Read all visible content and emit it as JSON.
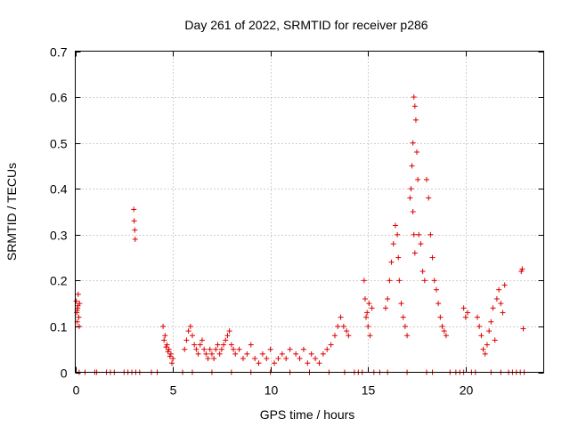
{
  "chart_data": {
    "type": "scatter",
    "title": "Day 261 of 2022, SRMTID for receiver p286",
    "xlabel": "GPS time / hours",
    "ylabel": "SRMTID / TECUs",
    "xlim": [
      0,
      24
    ],
    "ylim": [
      0,
      0.7
    ],
    "xticks": [
      "0",
      "5",
      "10",
      "15",
      "20"
    ],
    "xtick_values": [
      0,
      5,
      10,
      15,
      20
    ],
    "yticks": [
      "0",
      "0.1",
      "0.2",
      "0.3",
      "0.4",
      "0.5",
      "0.6",
      "0.7"
    ],
    "ytick_values": [
      0,
      0.1,
      0.2,
      0.3,
      0.4,
      0.5,
      0.6,
      0.7
    ],
    "grid": true,
    "marker": "+",
    "color": "#dd0000",
    "series": [
      {
        "name": "SRMTID",
        "x": [
          0.05,
          0.08,
          0.1,
          0.12,
          0.15,
          0.18,
          0.2,
          0.22,
          0.1,
          0.14,
          3.0,
          3.02,
          3.05,
          3.07,
          4.5,
          4.6,
          4.7,
          4.8,
          4.9,
          5.0,
          4.55,
          4.65,
          4.75,
          4.85,
          4.95,
          5.6,
          5.7,
          5.8,
          5.9,
          6.0,
          6.1,
          6.2,
          6.3,
          6.4,
          6.5,
          6.6,
          6.7,
          6.8,
          6.9,
          7.0,
          7.1,
          7.2,
          7.3,
          7.4,
          7.5,
          7.6,
          7.7,
          7.8,
          7.9,
          8.0,
          8.1,
          8.2,
          8.4,
          8.6,
          8.8,
          9.0,
          9.2,
          9.4,
          9.6,
          9.8,
          10.0,
          10.2,
          10.4,
          10.6,
          10.8,
          11.0,
          11.3,
          11.5,
          11.7,
          11.9,
          12.1,
          12.3,
          12.5,
          12.7,
          12.9,
          13.1,
          13.3,
          13.45,
          13.6,
          13.75,
          13.9,
          14.0,
          14.8,
          14.85,
          14.9,
          15.0,
          15.1,
          15.2,
          15.05,
          14.95,
          15.9,
          16.0,
          16.1,
          16.2,
          16.3,
          16.4,
          16.5,
          16.55,
          16.6,
          16.7,
          16.8,
          16.9,
          17.0,
          17.15,
          17.2,
          17.25,
          17.3,
          17.35,
          17.4,
          17.45,
          17.5,
          17.55,
          17.3,
          17.35,
          17.4,
          17.6,
          17.7,
          17.8,
          17.9,
          18.0,
          18.1,
          18.2,
          18.3,
          18.4,
          18.5,
          18.6,
          18.7,
          18.8,
          18.9,
          19.0,
          19.9,
          20.0,
          20.1,
          20.6,
          20.7,
          20.8,
          20.9,
          21.0,
          21.1,
          21.2,
          21.3,
          21.4,
          21.5,
          21.6,
          21.7,
          21.8,
          21.9,
          22.0,
          22.85,
          22.9,
          22.95,
          0.2,
          0.5,
          1.0,
          1.1,
          1.6,
          1.8,
          2.0,
          2.5,
          2.7,
          2.9,
          3.1,
          3.3,
          3.9,
          4.2,
          5.5,
          6.0,
          7.0,
          8.0,
          9.0,
          10.0,
          11.0,
          12.0,
          13.0,
          13.8,
          14.3,
          14.5,
          14.7,
          15.3,
          15.6,
          16.0,
          17.0,
          18.0,
          18.3,
          19.2,
          19.5,
          19.7,
          19.9,
          20.3,
          20.5,
          21.3,
          21.8,
          22.2,
          22.4,
          22.6,
          22.8,
          23.0
        ],
        "y": [
          0.155,
          0.13,
          0.11,
          0.14,
          0.17,
          0.12,
          0.1,
          0.15,
          0.135,
          0.145,
          0.355,
          0.33,
          0.31,
          0.29,
          0.1,
          0.08,
          0.06,
          0.05,
          0.04,
          0.03,
          0.07,
          0.055,
          0.045,
          0.035,
          0.02,
          0.05,
          0.07,
          0.09,
          0.1,
          0.08,
          0.06,
          0.05,
          0.04,
          0.06,
          0.07,
          0.05,
          0.04,
          0.03,
          0.05,
          0.04,
          0.03,
          0.05,
          0.06,
          0.04,
          0.05,
          0.06,
          0.07,
          0.08,
          0.09,
          0.06,
          0.05,
          0.04,
          0.05,
          0.03,
          0.04,
          0.06,
          0.03,
          0.02,
          0.04,
          0.03,
          0.05,
          0.02,
          0.03,
          0.04,
          0.03,
          0.05,
          0.04,
          0.03,
          0.05,
          0.02,
          0.04,
          0.03,
          0.02,
          0.04,
          0.05,
          0.06,
          0.08,
          0.1,
          0.12,
          0.1,
          0.09,
          0.08,
          0.2,
          0.16,
          0.12,
          0.1,
          0.08,
          0.14,
          0.15,
          0.13,
          0.14,
          0.16,
          0.2,
          0.24,
          0.28,
          0.32,
          0.3,
          0.25,
          0.2,
          0.15,
          0.12,
          0.1,
          0.08,
          0.38,
          0.4,
          0.45,
          0.5,
          0.6,
          0.58,
          0.55,
          0.48,
          0.42,
          0.35,
          0.3,
          0.26,
          0.3,
          0.28,
          0.22,
          0.2,
          0.42,
          0.38,
          0.3,
          0.25,
          0.2,
          0.18,
          0.15,
          0.12,
          0.1,
          0.09,
          0.08,
          0.14,
          0.12,
          0.13,
          0.12,
          0.1,
          0.08,
          0.05,
          0.04,
          0.06,
          0.09,
          0.11,
          0.14,
          0.07,
          0.16,
          0.18,
          0.15,
          0.13,
          0.19,
          0.22,
          0.225,
          0.095,
          0,
          0,
          0,
          0,
          0,
          0,
          0,
          0,
          0,
          0,
          0,
          0,
          0,
          0,
          0,
          0,
          0,
          0,
          0,
          0,
          0,
          0,
          0,
          0,
          0,
          0,
          0,
          0,
          0,
          0,
          0,
          0,
          0,
          0,
          0,
          0,
          0,
          0,
          0,
          0,
          0,
          0,
          0,
          0,
          0,
          0
        ]
      }
    ]
  }
}
